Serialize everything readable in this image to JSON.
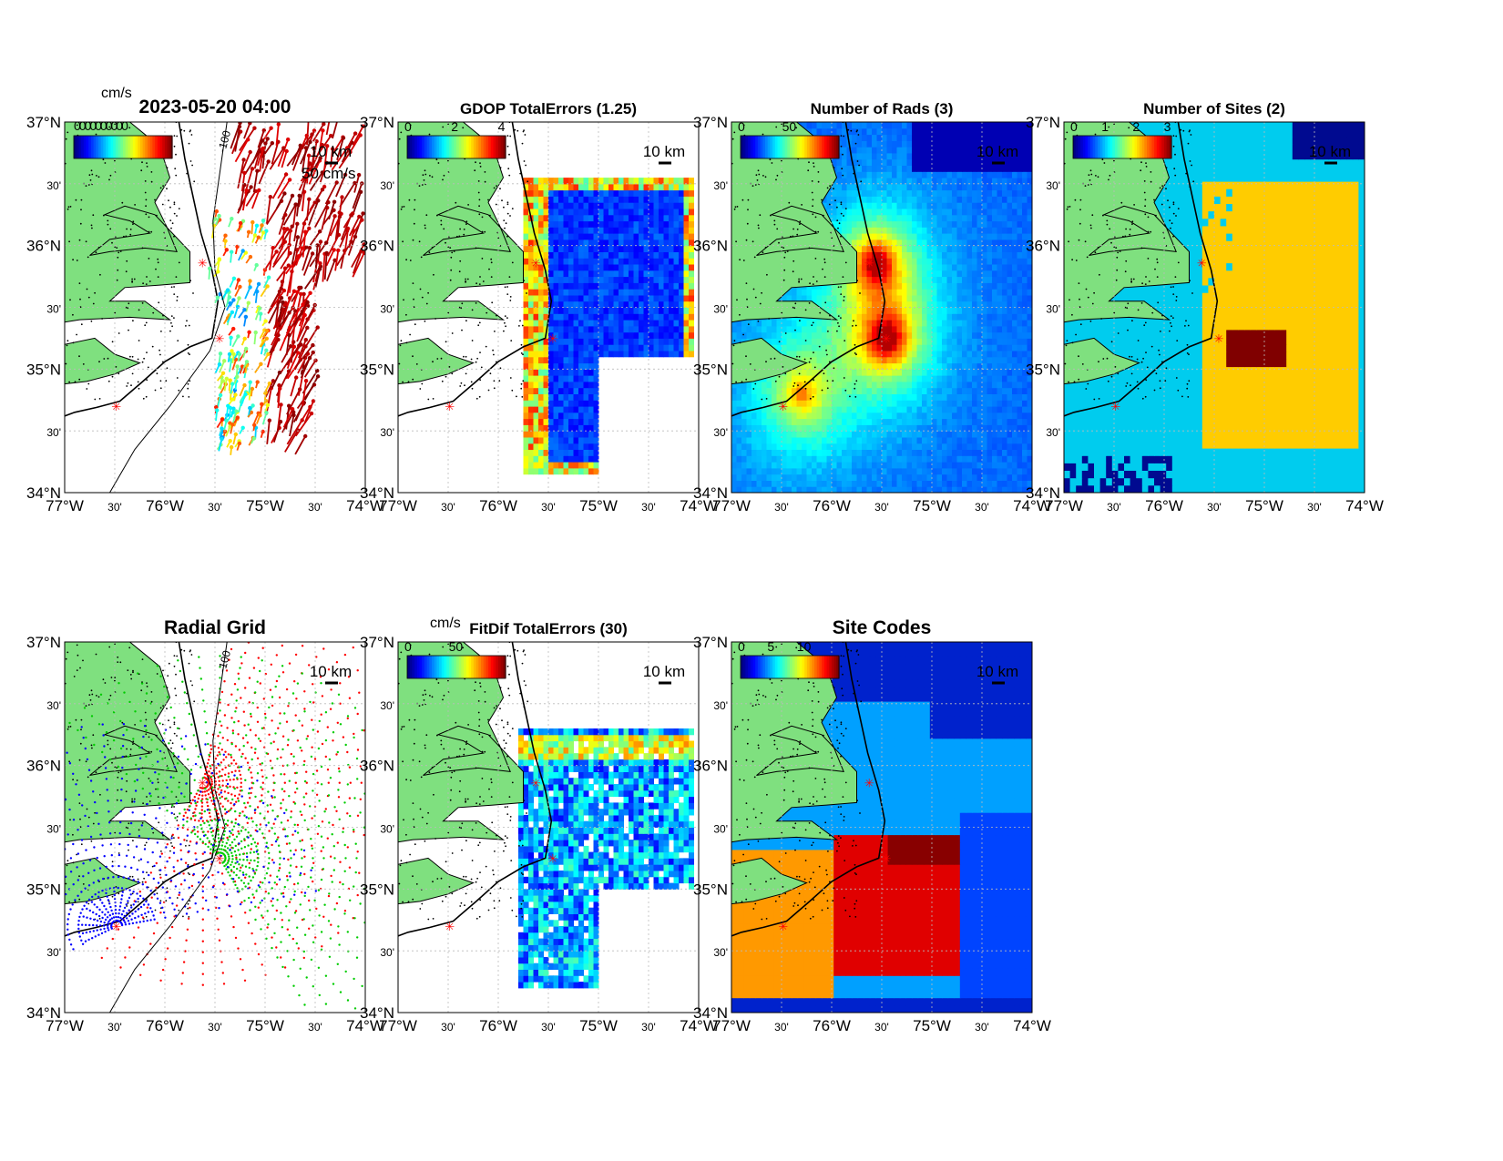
{
  "colors": {
    "land": "#7fe07f",
    "ocean_bg": "#ffffff",
    "coast": "#000000",
    "site_marker": "#ff0000",
    "grid": "#bbbbbb"
  },
  "axes": {
    "lat_labels": [
      "37°N",
      "30'",
      "36°N",
      "30'",
      "35°N",
      "30'",
      "34°N"
    ],
    "lon_labels": [
      "77°W",
      "30'",
      "76°W",
      "30'",
      "75°W",
      "30'",
      "74°W"
    ]
  },
  "panels": [
    {
      "id": "velocity",
      "title": "2023-05-20 04:00",
      "unit_label": "cm/s",
      "overlap_text": "0000000000",
      "cbar_ticks": [],
      "scale_text": "50 cm/s",
      "km_text": "10 km",
      "contour_label": "-100",
      "kind": "vectors"
    },
    {
      "id": "gdop",
      "title": "GDOP TotalErrors (1.25)",
      "unit_label": "",
      "cbar_ticks": [
        "0",
        "2",
        "4"
      ],
      "km_text": "10 km",
      "contour_label": "1.25",
      "kind": "field"
    },
    {
      "id": "nrads",
      "title": "Number of Rads (3)",
      "unit_label": "",
      "cbar_ticks": [
        "0",
        "50"
      ],
      "km_text": "10 km",
      "contour_label": "3",
      "kind": "field"
    },
    {
      "id": "nsites",
      "title": "Number of Sites (2)",
      "unit_label": "",
      "cbar_ticks": [
        "0",
        "1",
        "2",
        "3"
      ],
      "km_text": "10 km",
      "contour_label": "2",
      "kind": "field"
    },
    {
      "id": "radgrid",
      "title": "Radial Grid",
      "unit_label": "",
      "cbar_ticks": [],
      "km_text": "10 km",
      "contour_label": "-100",
      "kind": "radial"
    },
    {
      "id": "fitdif",
      "title": "FitDif TotalErrors (30)",
      "unit_label": "cm/s",
      "cbar_ticks": [
        "0",
        "50"
      ],
      "km_text": "10 km",
      "contour_label": "30",
      "kind": "field"
    },
    {
      "id": "sitecodes",
      "title": "Site Codes",
      "unit_label": "",
      "cbar_ticks": [
        "0",
        "5",
        "10"
      ],
      "km_text": "10 km",
      "contour_label": "",
      "kind": "field"
    }
  ]
}
